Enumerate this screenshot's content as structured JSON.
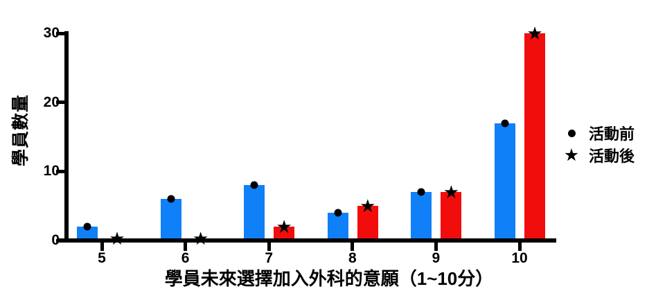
{
  "chart_data": {
    "type": "bar",
    "title": "",
    "xlabel": "學員未來選擇加入外科的意願（1~10分）",
    "ylabel": "學員數量",
    "categories": [
      "5",
      "6",
      "7",
      "8",
      "9",
      "10"
    ],
    "series": [
      {
        "name": "活動前",
        "marker": "dot",
        "color": "#1080F8",
        "values": [
          2,
          6,
          8,
          4,
          7,
          17
        ]
      },
      {
        "name": "活動後",
        "marker": "star",
        "color": "#F20D0D",
        "values": [
          0,
          0,
          2,
          5,
          7,
          30
        ]
      }
    ],
    "ylim": [
      0,
      30
    ],
    "yticks": [
      0,
      10,
      20,
      30
    ],
    "grid": false,
    "legend_position": "right",
    "axis_color": "#000000",
    "marker_color": "#000000",
    "background_color": "#FFFFFF"
  },
  "icons": {
    "dot": "●",
    "star": "★"
  }
}
